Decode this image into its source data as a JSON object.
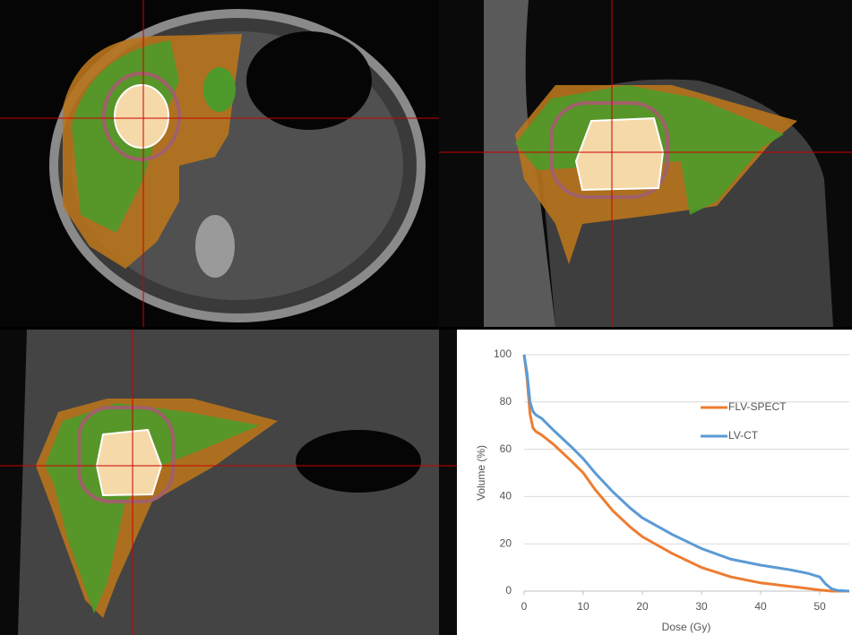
{
  "chart_data": {
    "type": "line",
    "y_label": "Volume (%)",
    "x_label": "Dose (Gy)",
    "xlim": [
      0,
      55
    ],
    "xticks": [
      0,
      10,
      20,
      30,
      40,
      50
    ],
    "ylim": [
      0,
      100
    ],
    "yticks": [
      0,
      20,
      40,
      60,
      80,
      100
    ],
    "grid": true,
    "legend": "right",
    "series": [
      {
        "name": "FLV-SPECT",
        "color": "#ed7d31",
        "x": [
          0,
          0.5,
          1,
          1.5,
          2,
          3,
          5,
          8,
          10,
          12,
          15,
          18,
          20,
          25,
          30,
          35,
          40,
          45,
          50,
          52,
          55
        ],
        "values": [
          100,
          90,
          75,
          69,
          67.5,
          66,
          62,
          55,
          50,
          43,
          34,
          27,
          23,
          16,
          10,
          6,
          3.5,
          2,
          0.5,
          0,
          0
        ]
      },
      {
        "name": "LV-CT",
        "color": "#5b9bd5",
        "x": [
          0,
          0.5,
          1,
          1.5,
          2,
          3,
          5,
          8,
          10,
          12,
          15,
          18,
          20,
          25,
          30,
          35,
          40,
          45,
          48,
          50,
          51,
          52,
          53,
          55
        ],
        "values": [
          100,
          92,
          80,
          76,
          74.5,
          73,
          68,
          61,
          56,
          50,
          42,
          35,
          31,
          24,
          18,
          13.5,
          11,
          9,
          7.5,
          6,
          3,
          1,
          0.3,
          0
        ]
      }
    ]
  }
}
